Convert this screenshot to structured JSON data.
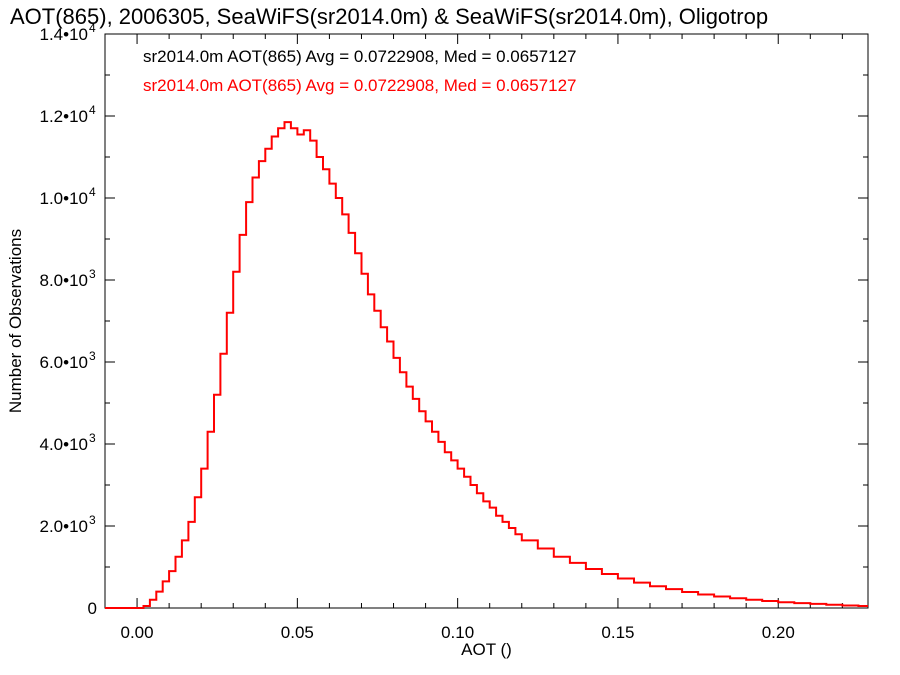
{
  "chart_data": {
    "type": "line",
    "title": "AOT(865), 2006305, SeaWiFS(sr2014.0m) & SeaWiFS(sr2014.0m), Oligotrop",
    "xlabel": "AOT ()",
    "ylabel": "Number of Observations",
    "xlim": [
      -0.01,
      0.228
    ],
    "ylim": [
      0,
      14000
    ],
    "x_ticks": [
      {
        "value": 0.0,
        "label": "0.00"
      },
      {
        "value": 0.05,
        "label": "0.05"
      },
      {
        "value": 0.1,
        "label": "0.10"
      },
      {
        "value": 0.15,
        "label": "0.15"
      },
      {
        "value": 0.2,
        "label": "0.20"
      }
    ],
    "y_ticks": [
      {
        "value": 0,
        "label": "0",
        "exp": ""
      },
      {
        "value": 2000,
        "label": "2.0•10",
        "exp": "3"
      },
      {
        "value": 4000,
        "label": "4.0•10",
        "exp": "3"
      },
      {
        "value": 6000,
        "label": "6.0•10",
        "exp": "3"
      },
      {
        "value": 8000,
        "label": "8.0•10",
        "exp": "3"
      },
      {
        "value": 10000,
        "label": "1.0•10",
        "exp": "4"
      },
      {
        "value": 12000,
        "label": "1.2•10",
        "exp": "4"
      },
      {
        "value": 14000,
        "label": "1.4•10",
        "exp": "4"
      }
    ],
    "legend": [
      {
        "text": "sr2014.0m AOT(865) Avg = 0.0722908, Med = 0.0657127",
        "color": "#000000"
      },
      {
        "text": "sr2014.0m AOT(865) Avg = 0.0722908, Med = 0.0657127",
        "color": "#ff0000"
      }
    ],
    "legend_position": "top-left",
    "grid": false,
    "series": [
      {
        "color": "#ff0000",
        "step": true,
        "x": [
          -0.01,
          0.0,
          0.002,
          0.004,
          0.006,
          0.008,
          0.01,
          0.012,
          0.014,
          0.016,
          0.018,
          0.02,
          0.022,
          0.024,
          0.026,
          0.028,
          0.03,
          0.032,
          0.034,
          0.036,
          0.038,
          0.04,
          0.042,
          0.044,
          0.046,
          0.048,
          0.05,
          0.052,
          0.054,
          0.056,
          0.058,
          0.06,
          0.062,
          0.064,
          0.066,
          0.068,
          0.07,
          0.072,
          0.074,
          0.076,
          0.078,
          0.08,
          0.082,
          0.084,
          0.086,
          0.088,
          0.09,
          0.092,
          0.094,
          0.096,
          0.098,
          0.1,
          0.102,
          0.104,
          0.106,
          0.108,
          0.11,
          0.112,
          0.114,
          0.116,
          0.118,
          0.12,
          0.125,
          0.13,
          0.135,
          0.14,
          0.145,
          0.15,
          0.155,
          0.16,
          0.165,
          0.17,
          0.175,
          0.18,
          0.185,
          0.19,
          0.195,
          0.2,
          0.205,
          0.21,
          0.215,
          0.22,
          0.225,
          0.228
        ],
        "y": [
          0,
          0,
          50,
          200,
          400,
          650,
          900,
          1250,
          1650,
          2100,
          2700,
          3400,
          4300,
          5200,
          6200,
          7200,
          8200,
          9100,
          9900,
          10500,
          10900,
          11200,
          11500,
          11700,
          11850,
          11700,
          11550,
          11650,
          11400,
          11000,
          10700,
          10350,
          10000,
          9600,
          9150,
          8650,
          8150,
          7650,
          7250,
          6850,
          6500,
          6100,
          5750,
          5400,
          5100,
          4800,
          4550,
          4300,
          4050,
          3800,
          3600,
          3400,
          3200,
          3000,
          2800,
          2600,
          2450,
          2250,
          2100,
          1950,
          1800,
          1650,
          1450,
          1250,
          1100,
          950,
          830,
          720,
          620,
          530,
          460,
          390,
          330,
          280,
          240,
          200,
          170,
          140,
          120,
          100,
          80,
          60,
          50,
          50
        ]
      }
    ]
  }
}
